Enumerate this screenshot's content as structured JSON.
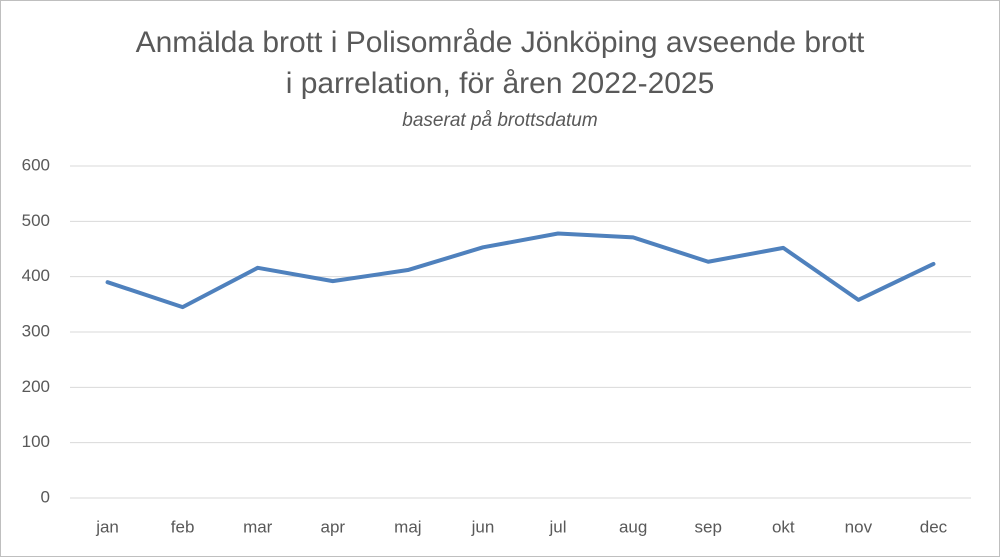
{
  "chart_data": {
    "type": "line",
    "title": [
      "Anmälda brott i Polisområde Jönköping avseende brott",
      "i parrelation, för åren 2022-2025"
    ],
    "subtitle": "baserat på brottsdatum",
    "categories": [
      "jan",
      "feb",
      "mar",
      "apr",
      "maj",
      "jun",
      "jul",
      "aug",
      "sep",
      "okt",
      "nov",
      "dec"
    ],
    "series": [
      {
        "color": "#4f81bd",
        "values": [
          390,
          345,
          416,
          392,
          412,
          453,
          478,
          471,
          427,
          452,
          358,
          423
        ]
      }
    ],
    "ylim": [
      0,
      600
    ],
    "yticks": [
      0,
      100,
      200,
      300,
      400,
      500,
      600
    ],
    "grid": true
  }
}
